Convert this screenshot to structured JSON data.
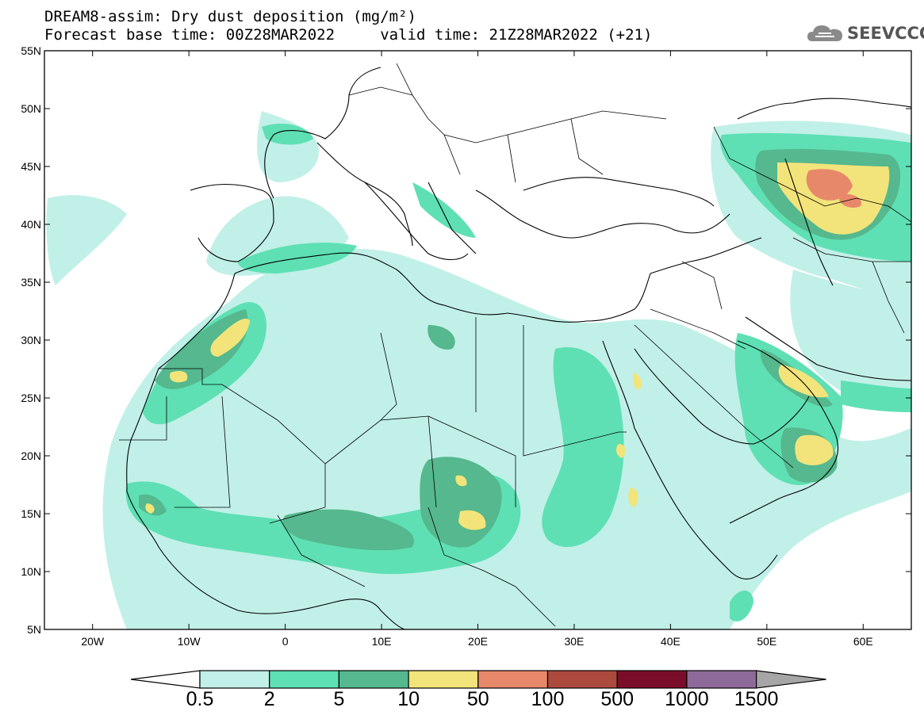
{
  "header": {
    "title_line1": "DREAM8-assim: Dry dust deposition (mg/m²)",
    "title_line2": "Forecast base time: 00Z28MAR2022     valid time: 21Z28MAR2022 (+21)"
  },
  "logo": {
    "text": "SEEVCCC",
    "icon": "cloud-icon"
  },
  "map": {
    "lat_ticks": [
      "55N",
      "50N",
      "45N",
      "40N",
      "35N",
      "30N",
      "25N",
      "20N",
      "15N",
      "10N",
      "5N"
    ],
    "lon_ticks": [
      "20W",
      "10W",
      "0",
      "10E",
      "20E",
      "30E",
      "40E",
      "50E",
      "60E"
    ],
    "extent": {
      "lon_min": -25,
      "lon_max": 65,
      "lat_min": 5,
      "lat_max": 55
    }
  },
  "colorbar": {
    "labels": [
      "0.5",
      "2",
      "5",
      "10",
      "50",
      "100",
      "500",
      "1000",
      "1500"
    ],
    "colors": [
      "#c1f0e8",
      "#5ee0b4",
      "#55b88e",
      "#f2e47a",
      "#e8886a",
      "#ac4a3e",
      "#7a0e2a",
      "#8e6a9a",
      "#a6a6a6"
    ],
    "under_color": "#ffffff"
  }
}
